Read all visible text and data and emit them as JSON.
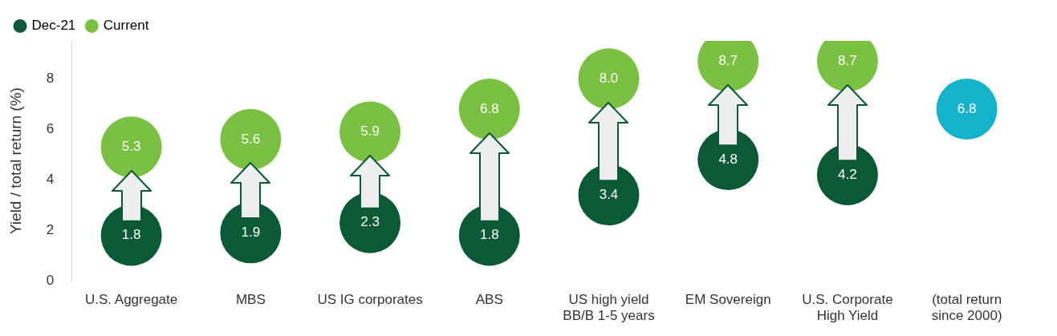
{
  "chart_data": {
    "type": "scatter",
    "ylabel": "Yield / total return (%)",
    "categories": [
      "U.S. Aggregate",
      "MBS",
      "US IG corporates",
      "ABS",
      "US high yield BB/B 1-5 years",
      "EM Sovereign",
      "U.S. Corporate High Yield",
      "(total return since 2000)"
    ],
    "series": [
      {
        "name": "Dec-21",
        "color": "#0b5a35",
        "values": [
          1.8,
          1.9,
          2.3,
          1.8,
          3.4,
          4.8,
          4.2,
          null
        ],
        "value_labels": [
          "1.8",
          "1.9",
          "2.3",
          "1.8",
          "3.4",
          "4.8",
          "4.2",
          null
        ]
      },
      {
        "name": "Current",
        "color": "#7ac143",
        "values": [
          5.3,
          5.6,
          5.9,
          6.8,
          8.0,
          8.7,
          8.7,
          null
        ],
        "value_labels": [
          "5.3",
          "5.6",
          "5.9",
          "6.8",
          "8.0",
          "8.7",
          "8.7",
          null
        ]
      },
      {
        "color": "#15b3cb",
        "values": [
          null,
          null,
          null,
          null,
          null,
          null,
          null,
          6.8
        ],
        "value_labels": [
          null,
          null,
          null,
          null,
          null,
          null,
          null,
          "6.8"
        ]
      }
    ],
    "ylim": [
      0,
      9.5
    ],
    "yticks": [
      0,
      2,
      4,
      6,
      8
    ],
    "grid": false,
    "legend": "top left",
    "marker": "circle"
  }
}
